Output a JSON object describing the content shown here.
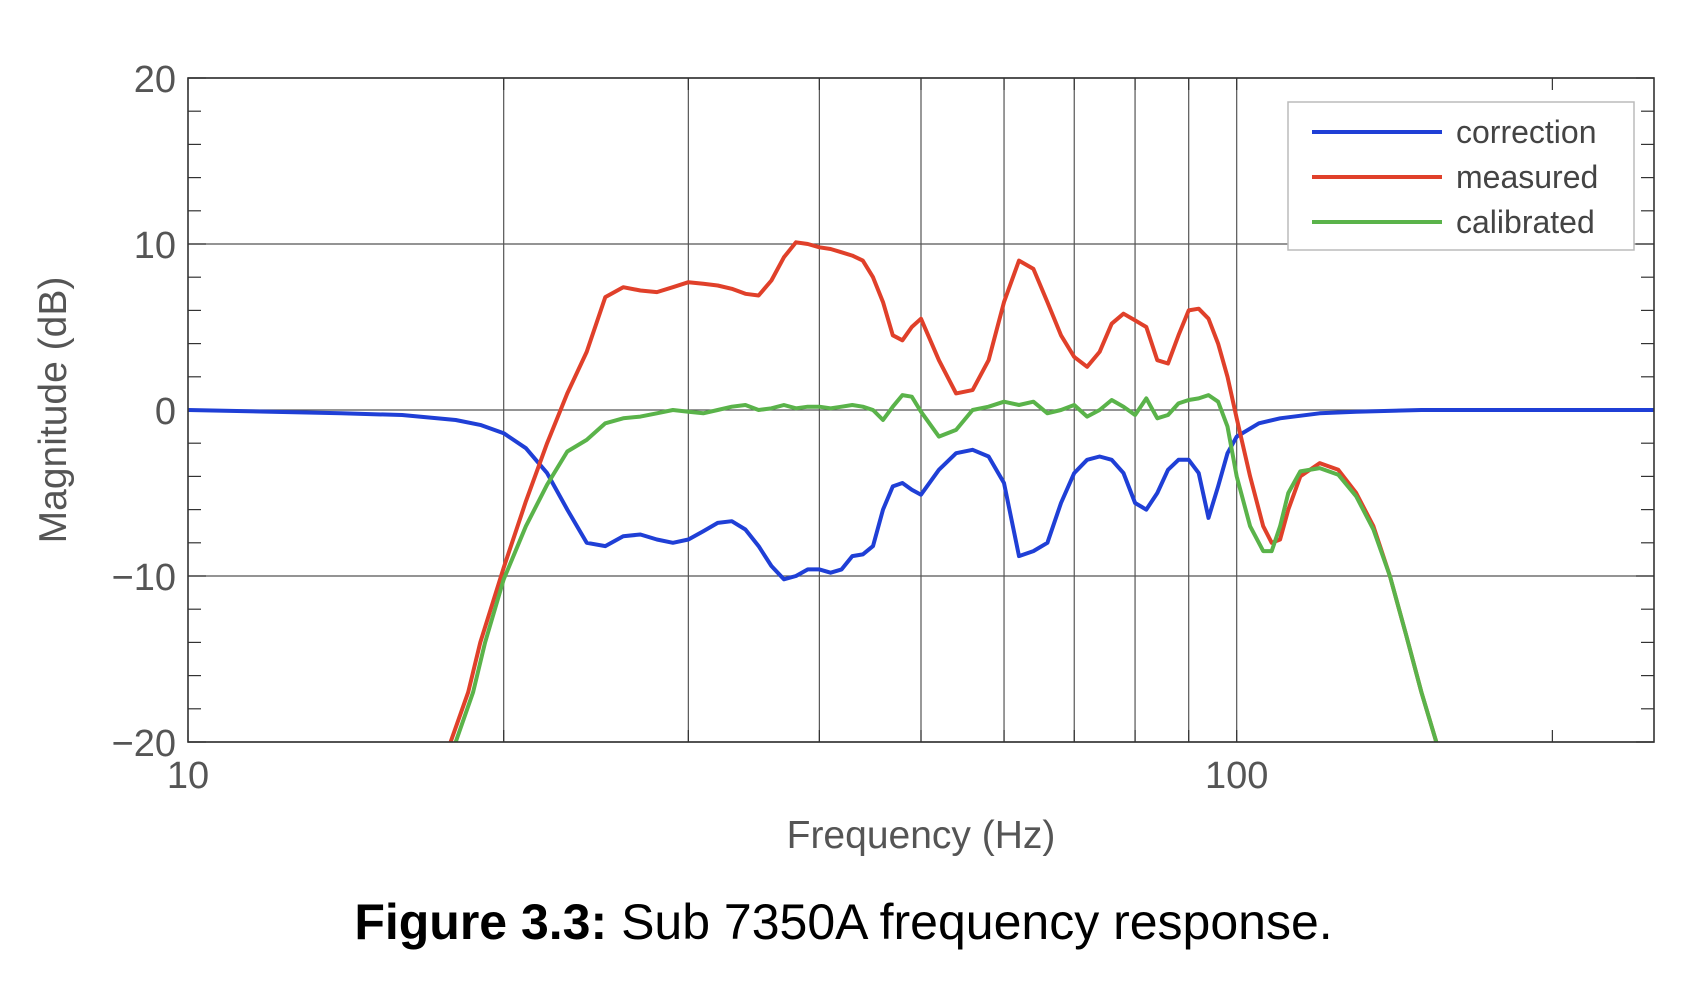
{
  "caption": {
    "label": "Figure 3.3:",
    "text": "Sub 7350A frequency response."
  },
  "chart_data": {
    "type": "line",
    "title": "",
    "xlabel": "Frequency (Hz)",
    "ylabel": "Magnitude (dB)",
    "xscale": "log",
    "xlim": [
      10,
      250
    ],
    "ylim": [
      -20,
      20
    ],
    "xticks": [
      10,
      100
    ],
    "xtick_labels": [
      "10",
      "100"
    ],
    "xgrid_lines": [
      20,
      30,
      40,
      50,
      60,
      70,
      80,
      90,
      100
    ],
    "yticks": [
      -20,
      -10,
      0,
      10,
      20
    ],
    "ytick_labels": [
      "−20",
      "−10",
      "0",
      "10",
      "20"
    ],
    "grid": true,
    "legend_position": "top-right",
    "series": [
      {
        "name": "correction",
        "color": "#1f3fd6",
        "x": [
          10,
          12,
          14,
          16,
          18,
          19,
          20,
          21,
          22,
          23,
          24,
          25,
          26,
          27,
          28,
          29,
          30,
          31,
          32,
          33,
          34,
          35,
          36,
          37,
          38,
          39,
          40,
          41,
          42,
          43,
          44,
          45,
          46,
          47,
          48,
          49,
          50,
          52,
          54,
          56,
          58,
          60,
          62,
          64,
          66,
          68,
          70,
          72,
          74,
          76,
          78,
          80,
          82,
          84,
          86,
          88,
          90,
          92,
          94,
          96,
          98,
          100,
          105,
          110,
          120,
          130,
          150,
          180,
          220,
          250
        ],
        "y": [
          0,
          -0.1,
          -0.2,
          -0.3,
          -0.6,
          -0.9,
          -1.4,
          -2.3,
          -3.8,
          -6.0,
          -8.0,
          -8.2,
          -7.6,
          -7.5,
          -7.8,
          -8.0,
          -7.8,
          -7.3,
          -6.8,
          -6.7,
          -7.2,
          -8.2,
          -9.4,
          -10.2,
          -10.0,
          -9.6,
          -9.6,
          -9.8,
          -9.6,
          -8.8,
          -8.7,
          -8.2,
          -6.0,
          -4.6,
          -4.4,
          -4.8,
          -5.1,
          -3.6,
          -2.6,
          -2.4,
          -2.8,
          -4.4,
          -8.8,
          -8.5,
          -8.0,
          -5.6,
          -3.8,
          -3.0,
          -2.8,
          -3.0,
          -3.8,
          -5.6,
          -6.0,
          -5.0,
          -3.6,
          -3.0,
          -3.0,
          -3.8,
          -6.5,
          -4.6,
          -2.6,
          -1.6,
          -0.8,
          -0.5,
          -0.2,
          -0.1,
          0,
          0,
          0,
          0
        ]
      },
      {
        "name": "measured",
        "color": "#e0402a",
        "x": [
          17.8,
          18.5,
          19,
          20,
          21,
          22,
          23,
          24,
          25,
          26,
          27,
          28,
          29,
          30,
          31,
          32,
          33,
          34,
          35,
          36,
          37,
          38,
          39,
          40,
          41,
          42,
          43,
          44,
          45,
          46,
          47,
          48,
          49,
          50,
          52,
          54,
          56,
          58,
          60,
          62,
          64,
          66,
          68,
          70,
          72,
          74,
          76,
          78,
          80,
          82,
          84,
          86,
          88,
          90,
          92,
          94,
          96,
          98,
          100,
          103,
          106,
          108,
          110,
          112,
          115,
          120,
          125,
          130,
          135,
          140,
          145,
          150,
          155
        ],
        "y": [
          -20,
          -17,
          -14,
          -9.5,
          -5.5,
          -2,
          1,
          3.5,
          6.8,
          7.4,
          7.2,
          7.1,
          7.4,
          7.7,
          7.6,
          7.5,
          7.3,
          7.0,
          6.9,
          7.8,
          9.2,
          10.1,
          10.0,
          9.8,
          9.7,
          9.5,
          9.3,
          9.0,
          8.0,
          6.5,
          4.5,
          4.2,
          5.0,
          5.5,
          3.0,
          1.0,
          1.2,
          3.0,
          6.5,
          9.0,
          8.5,
          6.5,
          4.5,
          3.2,
          2.6,
          3.5,
          5.2,
          5.8,
          5.4,
          5.0,
          3.0,
          2.8,
          4.5,
          6.0,
          6.1,
          5.5,
          4.0,
          2.0,
          -0.5,
          -4.0,
          -7.0,
          -8.0,
          -7.8,
          -6.0,
          -4.0,
          -3.2,
          -3.6,
          -5.0,
          -7.0,
          -10.0,
          -13.5,
          -17.0,
          -20
        ]
      },
      {
        "name": "calibrated",
        "color": "#5ab34a",
        "x": [
          18,
          18.7,
          19.2,
          20,
          21,
          22,
          23,
          24,
          25,
          26,
          27,
          28,
          29,
          30,
          31,
          32,
          33,
          34,
          35,
          36,
          37,
          38,
          39,
          40,
          41,
          42,
          43,
          44,
          45,
          46,
          47,
          48,
          49,
          50,
          52,
          54,
          56,
          58,
          60,
          62,
          64,
          66,
          68,
          70,
          72,
          74,
          76,
          78,
          80,
          82,
          84,
          86,
          88,
          90,
          92,
          94,
          96,
          98,
          100,
          103,
          106,
          108,
          110,
          112,
          115,
          120,
          125,
          130,
          135,
          140,
          145,
          150,
          155
        ],
        "y": [
          -20,
          -17,
          -14,
          -10.2,
          -7,
          -4.5,
          -2.5,
          -1.8,
          -0.8,
          -0.5,
          -0.4,
          -0.2,
          0,
          -0.1,
          -0.2,
          0,
          0.2,
          0.3,
          0,
          0.1,
          0.3,
          0.1,
          0.2,
          0.2,
          0.1,
          0.2,
          0.3,
          0.2,
          0,
          -0.6,
          0.2,
          0.9,
          0.8,
          -0.1,
          -1.6,
          -1.2,
          0,
          0.2,
          0.5,
          0.3,
          0.5,
          -0.2,
          0,
          0.3,
          -0.4,
          0,
          0.6,
          0.2,
          -0.3,
          0.7,
          -0.5,
          -0.3,
          0.4,
          0.6,
          0.7,
          0.9,
          0.5,
          -1.0,
          -4.0,
          -7.0,
          -8.5,
          -8.5,
          -7.0,
          -5.0,
          -3.7,
          -3.5,
          -3.9,
          -5.2,
          -7.2,
          -10.0,
          -13.5,
          -17.0,
          -20
        ]
      }
    ]
  }
}
